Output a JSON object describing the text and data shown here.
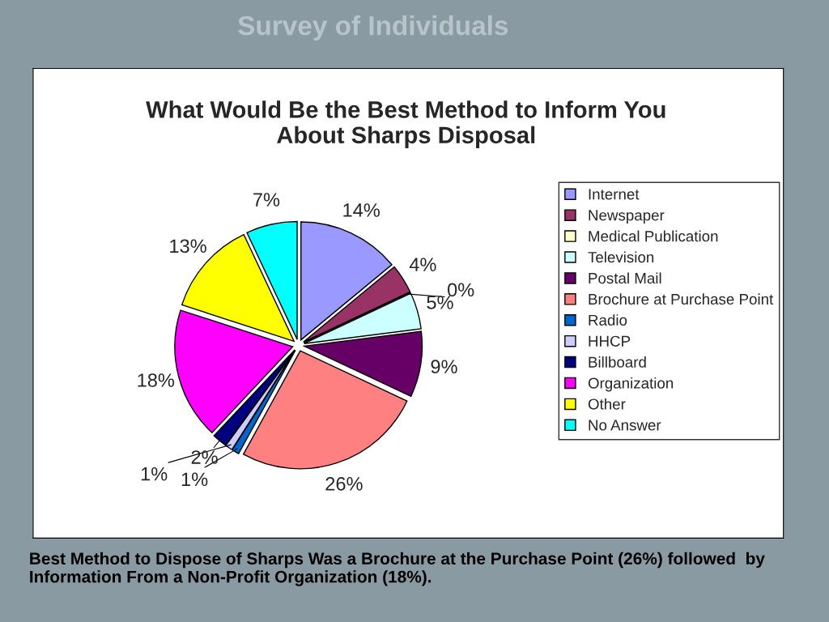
{
  "chart_data": {
    "type": "pie",
    "title": "Survey of Individuals",
    "subtitle": "What Would Be the Best Method to Inform You\nAbout Sharps Disposal",
    "categories": [
      "Internet",
      "Newspaper",
      "Medical Publication",
      "Television",
      "Postal Mail",
      "Brochure at Purchase Point",
      "Radio",
      "HHCP",
      "Billboard",
      "Organization",
      "Other",
      "No Answer"
    ],
    "values": [
      14,
      4,
      0,
      5,
      9,
      26,
      1,
      1,
      2,
      18,
      13,
      7
    ],
    "value_labels": [
      "14%",
      "4%",
      "0%",
      "5%",
      "9%",
      "26%",
      "1%",
      "1%",
      "2%",
      "18%",
      "13%",
      "7%"
    ],
    "colors": [
      "#9999ff",
      "#993366",
      "#ffffcc",
      "#ccffff",
      "#660066",
      "#ff8080",
      "#0066cc",
      "#ccccff",
      "#000080",
      "#ff00ff",
      "#ffff00",
      "#00ffff"
    ],
    "legend": "right",
    "annotations": [
      "Best Method to Dispose of Sharps Was a Brochure at the Purchase Point (26%) followed  by Information From a Non-Profit Organization (18%)."
    ]
  }
}
